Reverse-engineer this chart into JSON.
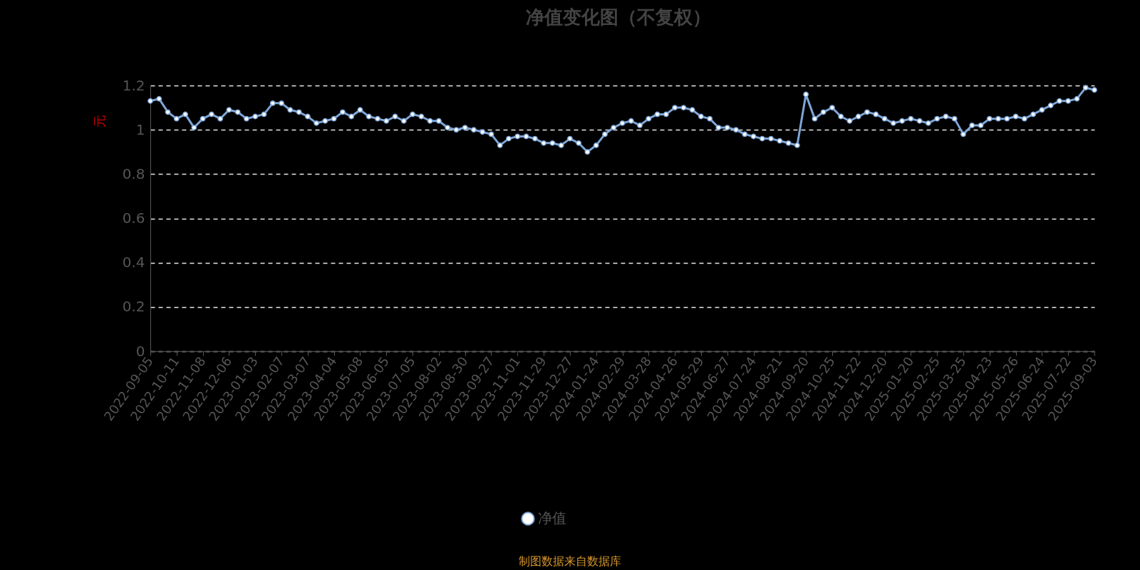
{
  "chart_data": {
    "type": "line",
    "title": "净值变化图（不复权）",
    "ylabel": "元",
    "categories": [
      "2022-09-05",
      null,
      null,
      "2022-10-11",
      null,
      null,
      "2022-11-08",
      null,
      null,
      "2022-12-06",
      null,
      null,
      "2023-01-03",
      null,
      null,
      "2023-02-07",
      null,
      null,
      "2023-03-07",
      null,
      null,
      "2023-04-04",
      null,
      null,
      "2023-05-08",
      null,
      null,
      "2023-06-05",
      null,
      null,
      "2023-07-05",
      null,
      null,
      "2023-08-02",
      null,
      null,
      "2023-08-30",
      null,
      null,
      "2023-09-27",
      null,
      null,
      "2023-11-01",
      null,
      null,
      "2023-11-29",
      null,
      null,
      "2023-12-27",
      null,
      null,
      "2024-01-24",
      null,
      null,
      "2024-02-29",
      null,
      null,
      "2024-03-28",
      null,
      null,
      "2024-04-26",
      null,
      null,
      "2024-05-29",
      null,
      null,
      "2024-06-27",
      null,
      null,
      "2024-07-24",
      null,
      null,
      "2024-08-21",
      null,
      null,
      "2024-09-20",
      null,
      null,
      "2024-10-25",
      null,
      null,
      "2024-11-22",
      null,
      null,
      "2024-12-20",
      null,
      null,
      "2025-01-20",
      null,
      null,
      "2025-02-25",
      null,
      null,
      "2025-03-25",
      null,
      null,
      "2025-04-23",
      null,
      null,
      "2025-05-26",
      null,
      null,
      "2025-06-24",
      null,
      null,
      "2025-07-22",
      null,
      null,
      "2025-09-03"
    ],
    "series": [
      {
        "name": "净值",
        "color": "#7ea6d8",
        "values": [
          1.13,
          1.14,
          1.08,
          1.05,
          1.07,
          1.01,
          1.05,
          1.07,
          1.05,
          1.09,
          1.08,
          1.05,
          1.06,
          1.07,
          1.12,
          1.12,
          1.09,
          1.08,
          1.06,
          1.03,
          1.04,
          1.05,
          1.08,
          1.06,
          1.09,
          1.06,
          1.05,
          1.04,
          1.06,
          1.04,
          1.07,
          1.06,
          1.04,
          1.04,
          1.01,
          1.0,
          1.01,
          1.0,
          0.99,
          0.98,
          0.93,
          0.96,
          0.97,
          0.97,
          0.96,
          0.94,
          0.94,
          0.93,
          0.96,
          0.94,
          0.9,
          0.93,
          0.98,
          1.01,
          1.03,
          1.04,
          1.02,
          1.05,
          1.07,
          1.07,
          1.1,
          1.1,
          1.09,
          1.06,
          1.05,
          1.01,
          1.01,
          1.0,
          0.98,
          0.97,
          0.96,
          0.96,
          0.95,
          0.94,
          0.93,
          1.16,
          1.05,
          1.08,
          1.1,
          1.06,
          1.04,
          1.06,
          1.08,
          1.07,
          1.05,
          1.03,
          1.04,
          1.05,
          1.04,
          1.03,
          1.05,
          1.06,
          1.05,
          0.98,
          1.02,
          1.02,
          1.05,
          1.05,
          1.05,
          1.06,
          1.05,
          1.07,
          1.09,
          1.11,
          1.13,
          1.13,
          1.14,
          1.19,
          1.18
        ]
      }
    ],
    "ylim": [
      0,
      1.2
    ],
    "yticks": [
      0,
      0.2,
      0.4,
      0.6,
      0.8,
      1,
      1.2
    ],
    "grid": "y",
    "legend": "bottom",
    "marker": "circle",
    "line_style": "solid",
    "annotations": [
      "制图数据来自数据库"
    ]
  }
}
